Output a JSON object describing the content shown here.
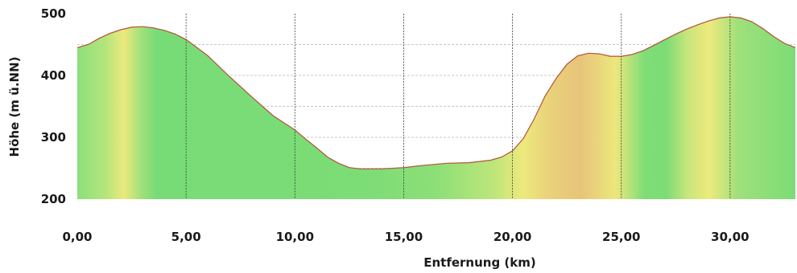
{
  "chart_data": {
    "type": "area",
    "xlabel": "Entfernung (km)",
    "ylabel": "Höhe (m ü.NN)",
    "xlim": [
      0,
      33
    ],
    "ylim": [
      200,
      500
    ],
    "x_ticks": [
      "0,00",
      "5,00",
      "10,00",
      "15,00",
      "20,00",
      "25,00",
      "30,00"
    ],
    "y_ticks": [
      "200",
      "300",
      "400",
      "500"
    ],
    "grid": true,
    "series": [
      {
        "x": [
          0,
          0.5,
          1,
          1.5,
          2,
          2.5,
          3,
          3.5,
          4,
          4.5,
          5,
          6,
          7,
          8,
          9,
          10,
          10.5,
          11,
          11.5,
          12,
          12.5,
          13,
          13.5,
          14,
          15,
          16,
          17,
          18,
          19,
          19.5,
          20,
          20.5,
          21,
          21.5,
          22,
          22.5,
          23,
          23.5,
          24,
          24.5,
          25,
          25.5,
          26,
          26.5,
          27,
          27.5,
          28,
          28.5,
          29,
          29.5,
          30,
          30.5,
          31,
          31.5,
          32,
          32.5,
          33
        ],
        "values": [
          445,
          450,
          460,
          468,
          474,
          478,
          479,
          477,
          473,
          467,
          458,
          432,
          398,
          366,
          335,
          312,
          297,
          283,
          268,
          258,
          251,
          249,
          249,
          249,
          251,
          255,
          258,
          259,
          263,
          268,
          278,
          298,
          330,
          367,
          395,
          418,
          432,
          436,
          435,
          431,
          431,
          434,
          440,
          449,
          458,
          467,
          475,
          482,
          488,
          493,
          495,
          493,
          487,
          476,
          463,
          452,
          445
        ]
      }
    ],
    "gradient_colors": [
      "#7ddd75",
      "#ece87a",
      "#e8c97a"
    ]
  }
}
